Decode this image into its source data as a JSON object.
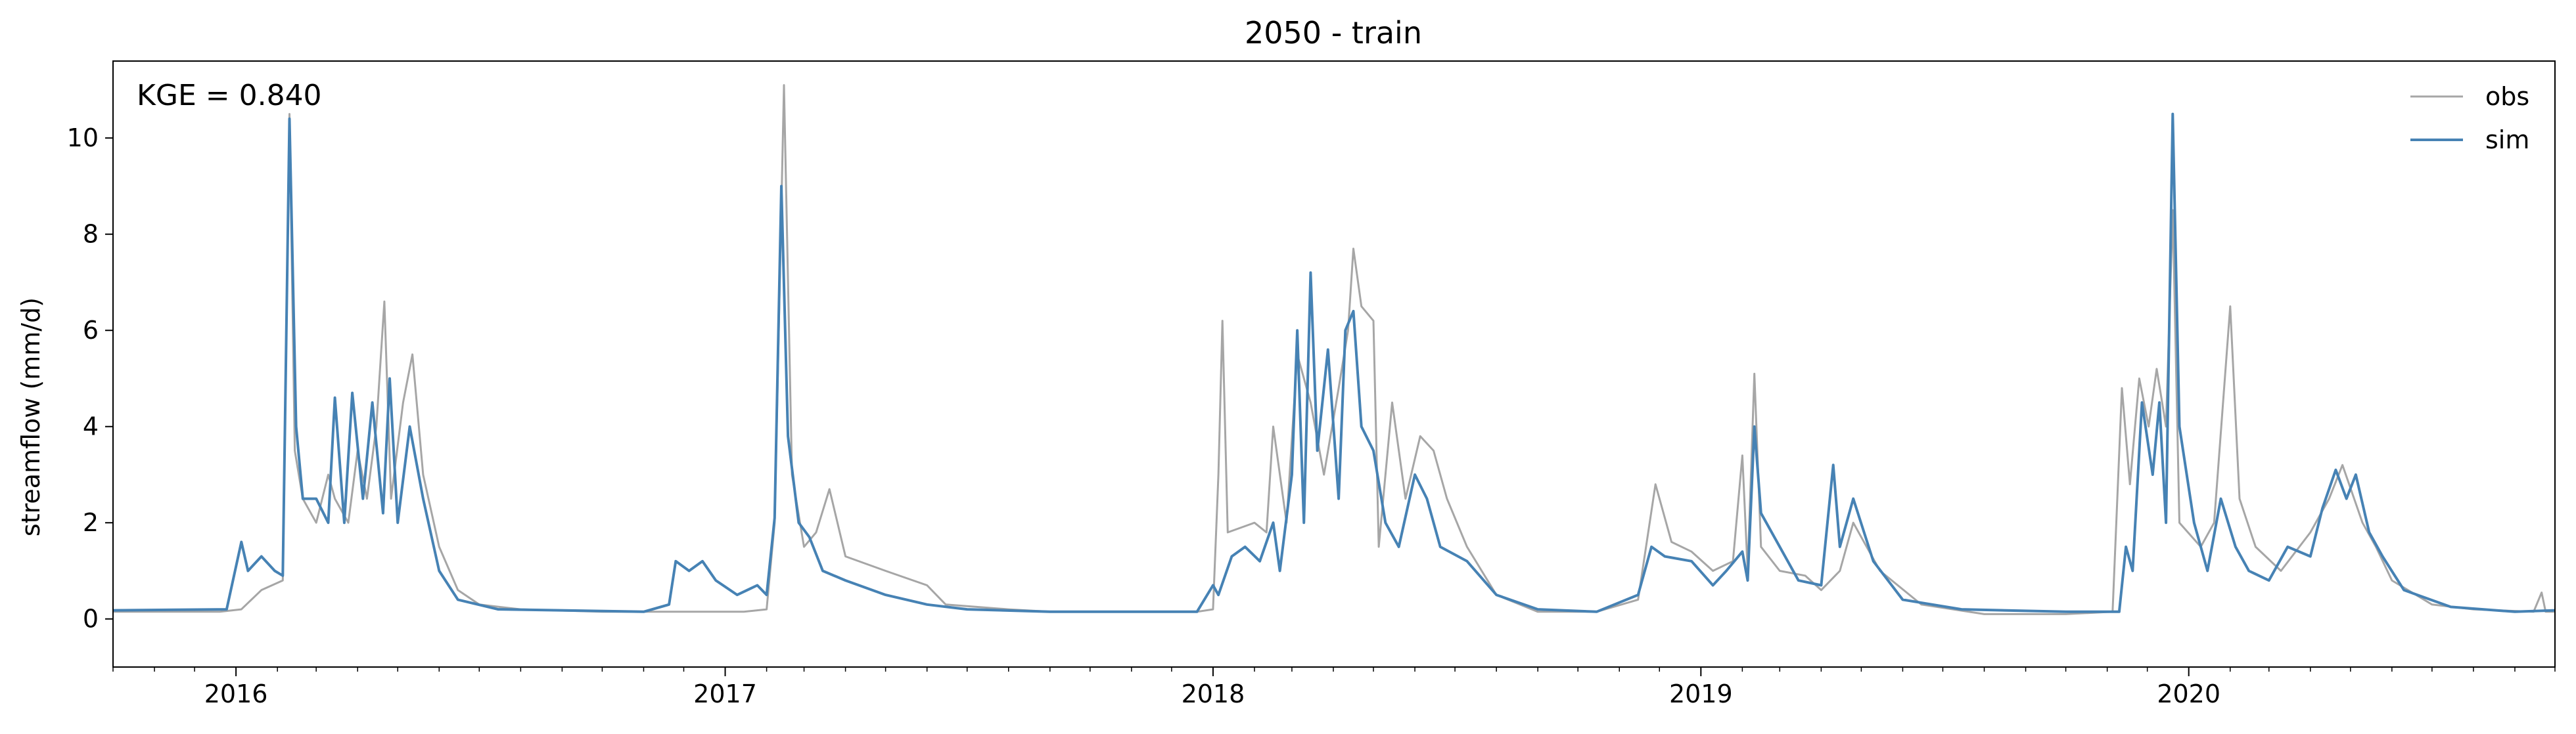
{
  "chart_data": {
    "type": "line",
    "title": "2050 - train",
    "xlabel": "",
    "ylabel": "streamflow (mm/d)",
    "annotation": "KGE = 0.840",
    "x_range": [
      "2015-10-01",
      "2020-10-01"
    ],
    "ylim": [
      -1.0,
      11.6
    ],
    "x_ticks": [
      {
        "date": "2016-01-01",
        "label": "2016"
      },
      {
        "date": "2017-01-01",
        "label": "2017"
      },
      {
        "date": "2018-01-01",
        "label": "2018"
      },
      {
        "date": "2019-01-01",
        "label": "2019"
      },
      {
        "date": "2020-01-01",
        "label": "2020"
      }
    ],
    "y_ticks": [
      0,
      2,
      4,
      6,
      8,
      10
    ],
    "grid": false,
    "legend_position": "top-right",
    "series": [
      {
        "name": "obs",
        "color": "#a6a6a6",
        "points": [
          [
            "2015-10-01",
            0.15
          ],
          [
            "2015-12-20",
            0.15
          ],
          [
            "2016-01-05",
            0.2
          ],
          [
            "2016-01-20",
            0.6
          ],
          [
            "2016-02-05",
            0.8
          ],
          [
            "2016-02-10",
            10.5
          ],
          [
            "2016-02-14",
            3.5
          ],
          [
            "2016-02-20",
            2.5
          ],
          [
            "2016-03-01",
            2.0
          ],
          [
            "2016-03-10",
            3.0
          ],
          [
            "2016-03-15",
            2.5
          ],
          [
            "2016-03-25",
            2.0
          ],
          [
            "2016-04-01",
            3.5
          ],
          [
            "2016-04-08",
            2.5
          ],
          [
            "2016-04-15",
            4.0
          ],
          [
            "2016-04-21",
            6.6
          ],
          [
            "2016-04-26",
            2.5
          ],
          [
            "2016-05-05",
            4.5
          ],
          [
            "2016-05-12",
            5.5
          ],
          [
            "2016-05-20",
            3.0
          ],
          [
            "2016-06-01",
            1.5
          ],
          [
            "2016-06-15",
            0.6
          ],
          [
            "2016-07-01",
            0.3
          ],
          [
            "2016-08-01",
            0.2
          ],
          [
            "2016-10-01",
            0.15
          ],
          [
            "2016-12-15",
            0.15
          ],
          [
            "2017-01-15",
            0.15
          ],
          [
            "2017-02-01",
            0.2
          ],
          [
            "2017-02-07",
            2.0
          ],
          [
            "2017-02-14",
            11.1
          ],
          [
            "2017-02-20",
            3.0
          ],
          [
            "2017-03-01",
            1.5
          ],
          [
            "2017-03-10",
            1.8
          ],
          [
            "2017-03-20",
            2.7
          ],
          [
            "2017-04-01",
            1.3
          ],
          [
            "2017-05-01",
            1.0
          ],
          [
            "2017-06-01",
            0.7
          ],
          [
            "2017-06-15",
            0.3
          ],
          [
            "2017-08-01",
            0.2
          ],
          [
            "2017-09-01",
            0.15
          ],
          [
            "2017-12-20",
            0.15
          ],
          [
            "2018-01-01",
            0.2
          ],
          [
            "2018-01-05",
            3.0
          ],
          [
            "2018-01-08",
            6.2
          ],
          [
            "2018-01-12",
            1.8
          ],
          [
            "2018-02-01",
            2.0
          ],
          [
            "2018-02-10",
            1.8
          ],
          [
            "2018-02-15",
            4.0
          ],
          [
            "2018-02-25",
            2.0
          ],
          [
            "2018-03-05",
            5.5
          ],
          [
            "2018-03-15",
            4.5
          ],
          [
            "2018-03-25",
            3.0
          ],
          [
            "2018-04-05",
            4.8
          ],
          [
            "2018-04-12",
            6.0
          ],
          [
            "2018-04-16",
            7.7
          ],
          [
            "2018-04-22",
            6.5
          ],
          [
            "2018-05-01",
            6.2
          ],
          [
            "2018-05-05",
            1.5
          ],
          [
            "2018-05-15",
            4.5
          ],
          [
            "2018-05-25",
            2.5
          ],
          [
            "2018-06-05",
            3.8
          ],
          [
            "2018-06-15",
            3.5
          ],
          [
            "2018-06-25",
            2.5
          ],
          [
            "2018-07-10",
            1.5
          ],
          [
            "2018-08-01",
            0.5
          ],
          [
            "2018-09-01",
            0.15
          ],
          [
            "2018-10-15",
            0.15
          ],
          [
            "2018-11-15",
            0.4
          ],
          [
            "2018-11-28",
            2.8
          ],
          [
            "2018-12-10",
            1.6
          ],
          [
            "2018-12-25",
            1.4
          ],
          [
            "2019-01-10",
            1.0
          ],
          [
            "2019-01-25",
            1.2
          ],
          [
            "2019-02-01",
            3.4
          ],
          [
            "2019-02-05",
            1.0
          ],
          [
            "2019-02-10",
            5.1
          ],
          [
            "2019-02-15",
            1.5
          ],
          [
            "2019-03-01",
            1.0
          ],
          [
            "2019-03-20",
            0.9
          ],
          [
            "2019-04-01",
            0.6
          ],
          [
            "2019-04-15",
            1.0
          ],
          [
            "2019-04-25",
            2.0
          ],
          [
            "2019-05-15",
            1.0
          ],
          [
            "2019-06-15",
            0.3
          ],
          [
            "2019-08-01",
            0.1
          ],
          [
            "2019-10-01",
            0.1
          ],
          [
            "2019-11-05",
            0.15
          ],
          [
            "2019-11-12",
            4.8
          ],
          [
            "2019-11-18",
            2.8
          ],
          [
            "2019-11-25",
            5.0
          ],
          [
            "2019-12-02",
            4.0
          ],
          [
            "2019-12-08",
            5.2
          ],
          [
            "2019-12-15",
            4.0
          ],
          [
            "2019-12-20",
            8.5
          ],
          [
            "2019-12-25",
            2.0
          ],
          [
            "2020-01-10",
            1.5
          ],
          [
            "2020-01-20",
            2.0
          ],
          [
            "2020-02-01",
            6.5
          ],
          [
            "2020-02-08",
            2.5
          ],
          [
            "2020-02-20",
            1.5
          ],
          [
            "2020-03-10",
            1.0
          ],
          [
            "2020-04-01",
            1.8
          ],
          [
            "2020-04-15",
            2.5
          ],
          [
            "2020-04-25",
            3.2
          ],
          [
            "2020-05-10",
            2.0
          ],
          [
            "2020-05-20",
            1.5
          ],
          [
            "2020-06-01",
            0.8
          ],
          [
            "2020-07-01",
            0.3
          ],
          [
            "2020-08-01",
            0.2
          ],
          [
            "2020-09-15",
            0.15
          ],
          [
            "2020-09-21",
            0.55
          ],
          [
            "2020-09-24",
            0.15
          ],
          [
            "2020-10-01",
            0.15
          ]
        ]
      },
      {
        "name": "sim",
        "color": "#4682b4",
        "points": [
          [
            "2015-10-01",
            0.18
          ],
          [
            "2015-12-25",
            0.2
          ],
          [
            "2016-01-05",
            1.6
          ],
          [
            "2016-01-10",
            1.0
          ],
          [
            "2016-01-20",
            1.3
          ],
          [
            "2016-01-30",
            1.0
          ],
          [
            "2016-02-05",
            0.9
          ],
          [
            "2016-02-10",
            10.4
          ],
          [
            "2016-02-15",
            4.0
          ],
          [
            "2016-02-20",
            2.5
          ],
          [
            "2016-03-01",
            2.5
          ],
          [
            "2016-03-10",
            2.0
          ],
          [
            "2016-03-15",
            4.6
          ],
          [
            "2016-03-22",
            2.0
          ],
          [
            "2016-03-28",
            4.7
          ],
          [
            "2016-04-05",
            2.5
          ],
          [
            "2016-04-12",
            4.5
          ],
          [
            "2016-04-20",
            2.2
          ],
          [
            "2016-04-25",
            5.0
          ],
          [
            "2016-05-01",
            2.0
          ],
          [
            "2016-05-10",
            4.0
          ],
          [
            "2016-05-20",
            2.5
          ],
          [
            "2016-06-01",
            1.0
          ],
          [
            "2016-06-15",
            0.4
          ],
          [
            "2016-07-15",
            0.2
          ],
          [
            "2016-11-01",
            0.15
          ],
          [
            "2016-11-20",
            0.3
          ],
          [
            "2016-11-25",
            1.2
          ],
          [
            "2016-12-05",
            1.0
          ],
          [
            "2016-12-15",
            1.2
          ],
          [
            "2016-12-25",
            0.8
          ],
          [
            "2017-01-10",
            0.5
          ],
          [
            "2017-01-25",
            0.7
          ],
          [
            "2017-02-01",
            0.5
          ],
          [
            "2017-02-07",
            2.1
          ],
          [
            "2017-02-12",
            9.0
          ],
          [
            "2017-02-17",
            3.8
          ],
          [
            "2017-02-25",
            2.0
          ],
          [
            "2017-03-05",
            1.7
          ],
          [
            "2017-03-15",
            1.0
          ],
          [
            "2017-04-01",
            0.8
          ],
          [
            "2017-05-01",
            0.5
          ],
          [
            "2017-06-01",
            0.3
          ],
          [
            "2017-07-01",
            0.2
          ],
          [
            "2017-09-01",
            0.15
          ],
          [
            "2017-12-20",
            0.15
          ],
          [
            "2018-01-01",
            0.7
          ],
          [
            "2018-01-05",
            0.5
          ],
          [
            "2018-01-15",
            1.3
          ],
          [
            "2018-01-25",
            1.5
          ],
          [
            "2018-02-05",
            1.2
          ],
          [
            "2018-02-15",
            2.0
          ],
          [
            "2018-02-20",
            1.0
          ],
          [
            "2018-03-01",
            3.0
          ],
          [
            "2018-03-05",
            6.0
          ],
          [
            "2018-03-10",
            2.0
          ],
          [
            "2018-03-15",
            7.2
          ],
          [
            "2018-03-20",
            3.5
          ],
          [
            "2018-03-28",
            5.6
          ],
          [
            "2018-04-05",
            2.5
          ],
          [
            "2018-04-10",
            6.0
          ],
          [
            "2018-04-16",
            6.4
          ],
          [
            "2018-04-22",
            4.0
          ],
          [
            "2018-05-01",
            3.5
          ],
          [
            "2018-05-10",
            2.0
          ],
          [
            "2018-05-20",
            1.5
          ],
          [
            "2018-06-01",
            3.0
          ],
          [
            "2018-06-10",
            2.5
          ],
          [
            "2018-06-20",
            1.5
          ],
          [
            "2018-07-10",
            1.2
          ],
          [
            "2018-08-01",
            0.5
          ],
          [
            "2018-09-01",
            0.2
          ],
          [
            "2018-10-15",
            0.15
          ],
          [
            "2018-11-15",
            0.5
          ],
          [
            "2018-11-25",
            1.5
          ],
          [
            "2018-12-05",
            1.3
          ],
          [
            "2018-12-25",
            1.2
          ],
          [
            "2019-01-10",
            0.7
          ],
          [
            "2019-01-20",
            1.0
          ],
          [
            "2019-02-01",
            1.4
          ],
          [
            "2019-02-05",
            0.8
          ],
          [
            "2019-02-10",
            4.0
          ],
          [
            "2019-02-15",
            2.2
          ],
          [
            "2019-03-01",
            1.5
          ],
          [
            "2019-03-15",
            0.8
          ],
          [
            "2019-04-01",
            0.7
          ],
          [
            "2019-04-10",
            3.2
          ],
          [
            "2019-04-15",
            1.5
          ],
          [
            "2019-04-25",
            2.5
          ],
          [
            "2019-05-10",
            1.2
          ],
          [
            "2019-06-01",
            0.4
          ],
          [
            "2019-07-15",
            0.2
          ],
          [
            "2019-10-01",
            0.15
          ],
          [
            "2019-11-10",
            0.15
          ],
          [
            "2019-11-15",
            1.5
          ],
          [
            "2019-11-20",
            1.0
          ],
          [
            "2019-11-27",
            4.5
          ],
          [
            "2019-12-05",
            3.0
          ],
          [
            "2019-12-10",
            4.5
          ],
          [
            "2019-12-15",
            2.0
          ],
          [
            "2019-12-20",
            10.5
          ],
          [
            "2019-12-25",
            4.0
          ],
          [
            "2020-01-05",
            2.0
          ],
          [
            "2020-01-15",
            1.0
          ],
          [
            "2020-01-25",
            2.5
          ],
          [
            "2020-02-05",
            1.5
          ],
          [
            "2020-02-15",
            1.0
          ],
          [
            "2020-03-01",
            0.8
          ],
          [
            "2020-03-15",
            1.5
          ],
          [
            "2020-04-01",
            1.3
          ],
          [
            "2020-04-10",
            2.3
          ],
          [
            "2020-04-20",
            3.1
          ],
          [
            "2020-04-28",
            2.5
          ],
          [
            "2020-05-05",
            3.0
          ],
          [
            "2020-05-15",
            1.8
          ],
          [
            "2020-05-25",
            1.3
          ],
          [
            "2020-06-10",
            0.6
          ],
          [
            "2020-07-15",
            0.25
          ],
          [
            "2020-09-01",
            0.15
          ],
          [
            "2020-10-01",
            0.18
          ]
        ]
      }
    ]
  }
}
